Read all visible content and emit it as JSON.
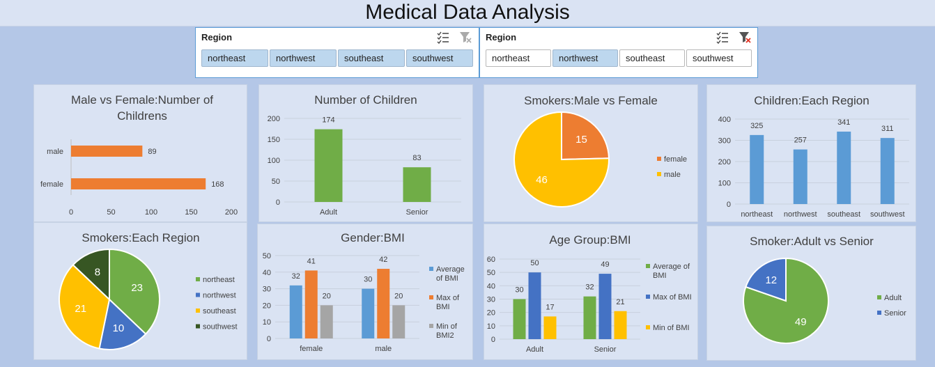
{
  "dashboard": {
    "title": "Medical Data Analysis"
  },
  "slicers": [
    {
      "header": "Region",
      "items": [
        {
          "label": "northeast",
          "selected": true
        },
        {
          "label": "northwest",
          "selected": true
        },
        {
          "label": "southeast",
          "selected": true
        },
        {
          "label": "southwest",
          "selected": true
        }
      ]
    },
    {
      "header": "Region",
      "items": [
        {
          "label": "northeast",
          "selected": false
        },
        {
          "label": "northwest",
          "selected": true
        },
        {
          "label": "southeast",
          "selected": false
        },
        {
          "label": "southwest",
          "selected": false
        }
      ]
    }
  ],
  "icons": {
    "multiselect": "multiselect-icon",
    "clear_filter": "clear-filter-icon"
  },
  "colors": {
    "orange": "#ed7d31",
    "green": "#70ad47",
    "blue": "#5b9bd5",
    "gold": "#ffc000",
    "darkblue": "#4472c4",
    "gray": "#a5a5a5",
    "darkgreen": "#375623"
  },
  "chart_data": [
    {
      "id": "male-female-children",
      "type": "bar",
      "orientation": "horizontal",
      "title_lines": [
        "Male vs Female:Number of",
        "Childrens"
      ],
      "categories": [
        "male",
        "female"
      ],
      "values": [
        89,
        168
      ],
      "xlim": [
        0,
        200
      ],
      "xticks": [
        "0",
        "50",
        "100",
        "150",
        "200"
      ],
      "grid": false
    },
    {
      "id": "number-of-children",
      "type": "bar",
      "title": "Number of Children",
      "categories": [
        "Adult",
        "Senior"
      ],
      "values": [
        174,
        83
      ],
      "ylim": [
        0,
        200
      ],
      "yticks": [
        "0",
        "50",
        "100",
        "150",
        "200"
      ],
      "grid": true
    },
    {
      "id": "smokers-male-female",
      "type": "pie",
      "title": "Smokers:Male vs Female",
      "labels": [
        "female",
        "male"
      ],
      "values": [
        15,
        46
      ],
      "legend": "right"
    },
    {
      "id": "children-each-region",
      "type": "bar",
      "title": "Children:Each Region",
      "categories": [
        "northeast",
        "northwest",
        "southeast",
        "southwest"
      ],
      "values": [
        325,
        257,
        341,
        311
      ],
      "ylim": [
        0,
        400
      ],
      "yticks": [
        "0",
        "100",
        "200",
        "300",
        "400"
      ],
      "grid": true
    },
    {
      "id": "smokers-each-region",
      "type": "pie",
      "title": "Smokers:Each Region",
      "labels": [
        "northeast",
        "northwest",
        "southeast",
        "southwest"
      ],
      "values": [
        23,
        10,
        21,
        8
      ],
      "legend": "right"
    },
    {
      "id": "gender-bmi",
      "type": "bar",
      "title": "Gender:BMI",
      "categories": [
        "female",
        "male"
      ],
      "series": [
        {
          "name": "Average of BMI",
          "legend_lines": [
            "Average",
            "of BMI"
          ],
          "values": [
            32,
            30
          ]
        },
        {
          "name": "Max of BMI",
          "legend_lines": [
            "Max of",
            "BMI"
          ],
          "values": [
            41,
            42
          ]
        },
        {
          "name": "Min of BMI2",
          "legend_lines": [
            "Min of",
            "BMI2"
          ],
          "values": [
            20,
            20
          ]
        }
      ],
      "ylim": [
        0,
        50
      ],
      "yticks": [
        "0",
        "10",
        "20",
        "30",
        "40",
        "50"
      ],
      "grid": true,
      "legend": "right"
    },
    {
      "id": "age-group-bmi",
      "type": "bar",
      "title": "Age Group:BMI",
      "categories": [
        "Adult",
        "Senior"
      ],
      "series": [
        {
          "name": "Average of BMI",
          "legend_lines": [
            "Average of",
            "BMI"
          ],
          "values": [
            30,
            32
          ]
        },
        {
          "name": "Max of BMI",
          "legend_lines": [
            "Max of BMI"
          ],
          "values": [
            50,
            49
          ]
        },
        {
          "name": "Min of BMI",
          "legend_lines": [
            "Min of BMI"
          ],
          "values": [
            17,
            21
          ]
        }
      ],
      "ylim": [
        0,
        60
      ],
      "yticks": [
        "0",
        "10",
        "20",
        "30",
        "40",
        "50",
        "60"
      ],
      "grid": true,
      "legend": "right"
    },
    {
      "id": "smoker-adult-senior",
      "type": "pie",
      "title": "Smoker:Adult vs Senior",
      "labels": [
        "Adult",
        "Senior"
      ],
      "values": [
        49,
        12
      ],
      "legend": "right"
    }
  ]
}
